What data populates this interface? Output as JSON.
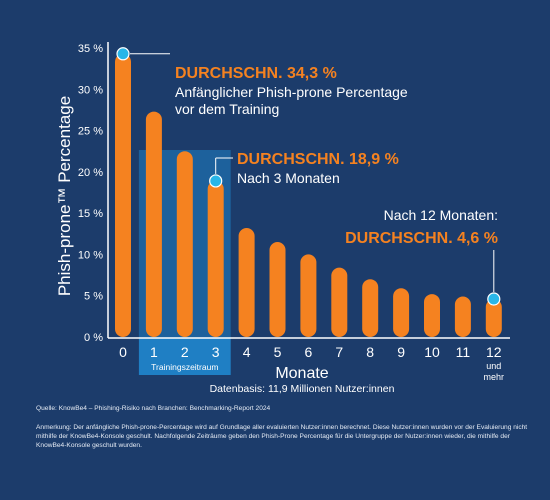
{
  "chart_data": {
    "type": "bar",
    "ylabel": "Phish-prone™ Percentage",
    "xlabel": "Monate",
    "y_ticks": [
      "35 %",
      "30 %",
      "25 %",
      "20 %",
      "15 %",
      "10 %",
      "5 %",
      "0 %"
    ],
    "ylim": [
      0,
      35
    ],
    "grid": false,
    "categories": [
      "0",
      "1",
      "2",
      "3",
      "4",
      "5",
      "6",
      "7",
      "8",
      "9",
      "10",
      "11",
      "12"
    ],
    "category_sub": {
      "12": "und mehr"
    },
    "values": [
      34.3,
      27.3,
      22.5,
      18.9,
      13.2,
      11.5,
      10.0,
      8.4,
      7.0,
      5.9,
      5.2,
      4.9,
      4.6
    ],
    "bar_color": "#f58220",
    "marker_color": "#29b6e8",
    "training_band": {
      "categories": [
        "1",
        "2",
        "3"
      ],
      "label": "Trainingszeitraum",
      "color": "#1f7fc4"
    },
    "annotations": [
      {
        "category": "0",
        "title": "DURCHSCHN. 34,3 %",
        "lines": [
          "Anfänglicher Phish-prone Percentage",
          "vor dem Training"
        ]
      },
      {
        "category": "3",
        "title": "DURCHSCHN. 18,9 %",
        "lines": [
          "Nach 3 Monaten"
        ]
      },
      {
        "category": "12",
        "title": "DURCHSCHN. 4,6 %",
        "lines": [
          "Nach 12 Monaten:"
        ]
      }
    ],
    "basis": "Datenbasis: 11,9 Millionen Nutzer:innen"
  },
  "footer": {
    "source": "Quelle: KnowBe4 – Phishing-Risiko nach Branchen: Benchmarking-Report 2024",
    "note": "Anmerkung: Der anfängliche Phish-prone-Percentage wird auf Grundlage aller evaluierten Nutzer:innen berechnet. Diese Nutzer:innen wurden vor der Evaluierung nicht mithilfe der KnowBe4-Konsole geschult. Nachfolgende Zeiträume geben den Phish-Prone Percentage für die Untergruppe der Nutzer:innen wieder, die mithilfe der KnowBe4-Konsole geschult wurden."
  }
}
